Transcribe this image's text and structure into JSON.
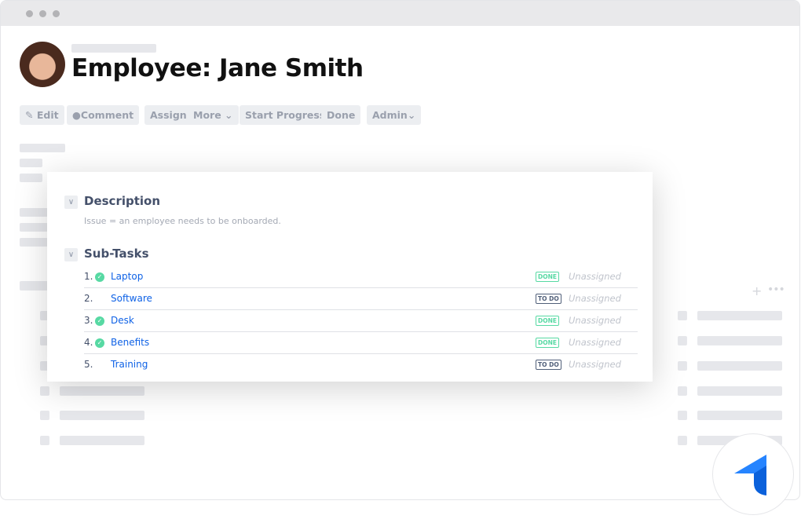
{
  "header": {
    "title": "Employee: Jane Smith"
  },
  "toolbar": {
    "edit": "Edit",
    "comment": "Comment",
    "assign": "Assign",
    "more": "More",
    "start_progress": "Start Progress",
    "done": "Done",
    "admin": "Admin"
  },
  "description": {
    "heading": "Description",
    "text": "Issue = an employee needs to be onboarded."
  },
  "subtasks": {
    "heading": "Sub-Tasks",
    "items": [
      {
        "num": "1.",
        "name": "Laptop",
        "status": "DONE",
        "assignee": "Unassigned",
        "checked": true
      },
      {
        "num": "2.",
        "name": "Software",
        "status": "TO DO",
        "assignee": "Unassigned",
        "checked": false
      },
      {
        "num": "3.",
        "name": "Desk",
        "status": "DONE",
        "assignee": "Unassigned",
        "checked": true
      },
      {
        "num": "4.",
        "name": "Benefits",
        "status": "DONE",
        "assignee": "Unassigned",
        "checked": true
      },
      {
        "num": "5.",
        "name": "Training",
        "status": "TO DO",
        "assignee": "Unassigned",
        "checked": false
      }
    ]
  },
  "colors": {
    "accent": "#0f62e6",
    "done": "#57d9a3",
    "todo": "#505f79"
  },
  "icons": {
    "edit": "pencil-icon",
    "comment": "speech-bubble-icon",
    "logo": "jira-logo-icon"
  }
}
